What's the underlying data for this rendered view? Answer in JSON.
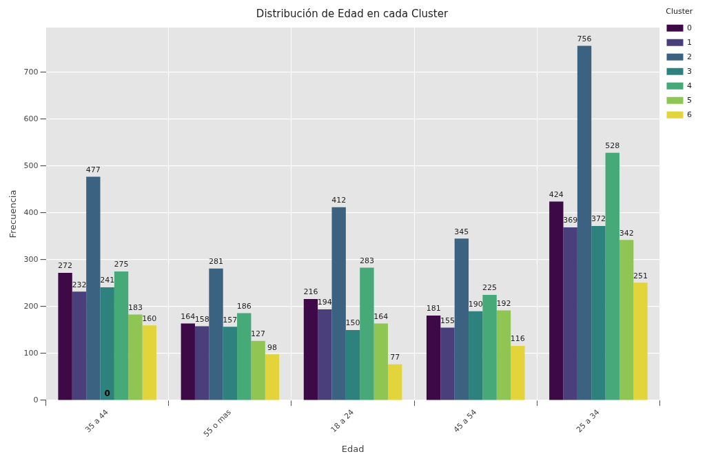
{
  "chart_data": {
    "type": "bar",
    "title": "Distribución de Edad en cada Cluster",
    "xlabel": "Edad",
    "ylabel": "Frecuencia",
    "legend_title": "Cluster",
    "categories": [
      "35 a 44",
      "55 o mas",
      "18 a 24",
      "45 a 54",
      "25 a 34"
    ],
    "series": [
      {
        "name": "0",
        "color": "#3d0a47",
        "values": [
          272,
          164,
          216,
          181,
          424
        ]
      },
      {
        "name": "1",
        "color": "#4a3f7a",
        "values": [
          232,
          158,
          194,
          155,
          369
        ]
      },
      {
        "name": "2",
        "color": "#3b6381",
        "values": [
          477,
          281,
          412,
          345,
          756
        ]
      },
      {
        "name": "3",
        "color": "#2e827e",
        "values": [
          241,
          157,
          150,
          190,
          372
        ]
      },
      {
        "name": "4",
        "color": "#45a978",
        "values": [
          275,
          186,
          283,
          225,
          528
        ]
      },
      {
        "name": "5",
        "color": "#8ec553",
        "values": [
          183,
          127,
          164,
          192,
          342
        ]
      },
      {
        "name": "6",
        "color": "#e2d43a",
        "values": [
          160,
          98,
          77,
          116,
          251
        ]
      }
    ],
    "ylim": [
      0,
      795
    ],
    "yticks": [
      0,
      100,
      200,
      300,
      400,
      500,
      600,
      700
    ],
    "grid": true,
    "legend": "top right",
    "data_labels": true,
    "annotations": [
      {
        "text": "0",
        "x": "35 a 44",
        "y": 0
      }
    ]
  }
}
